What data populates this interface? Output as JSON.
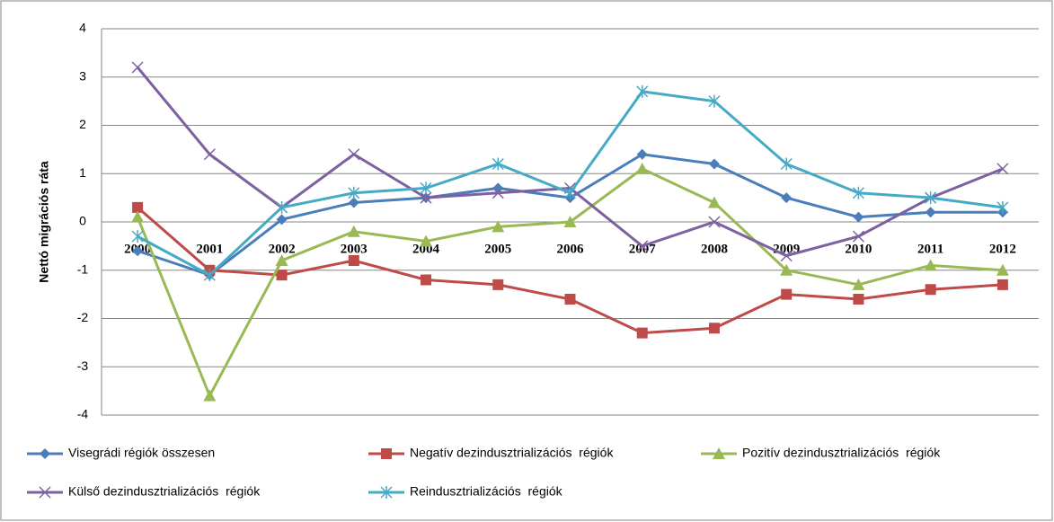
{
  "chart_data": {
    "type": "line",
    "y_label": "Nettó migrációs ráta",
    "categories": [
      "2000",
      "2001",
      "2002",
      "2003",
      "2004",
      "2005",
      "2006",
      "2007",
      "2008",
      "2009",
      "2010",
      "2011",
      "2012"
    ],
    "ylim": [
      -4,
      4
    ],
    "yticks": [
      -4,
      -3,
      -2,
      -1,
      0,
      1,
      2,
      3,
      4
    ],
    "grid": true,
    "legend": "bottom",
    "series": [
      {
        "name": "Visegrádi régiók összesen",
        "color": "#4a7ebb",
        "marker": "diamond",
        "values": [
          -0.6,
          -1.1,
          0.05,
          0.4,
          0.5,
          0.7,
          0.5,
          1.4,
          1.2,
          0.5,
          0.1,
          0.2,
          0.2
        ]
      },
      {
        "name": "Negatív dezindusztrializációs  régiók",
        "color": "#be4b48",
        "marker": "square",
        "values": [
          0.3,
          -1.0,
          -1.1,
          -0.8,
          -1.2,
          -1.3,
          -1.6,
          -2.3,
          -2.2,
          -1.5,
          -1.6,
          -1.4,
          -1.3
        ]
      },
      {
        "name": "Pozitív dezindusztrializációs  régiók",
        "color": "#98b954",
        "marker": "triangle",
        "values": [
          0.1,
          -3.6,
          -0.8,
          -0.2,
          -0.4,
          -0.1,
          0.0,
          1.1,
          0.4,
          -1.0,
          -1.3,
          -0.9,
          -1.0
        ]
      },
      {
        "name": "Külső dezindusztrializációs  régiók",
        "color": "#7d60a0",
        "marker": "x",
        "values": [
          3.2,
          1.4,
          0.3,
          1.4,
          0.5,
          0.6,
          0.7,
          -0.5,
          0.0,
          -0.7,
          -0.3,
          0.5,
          1.1
        ]
      },
      {
        "name": "Reindusztrializációs  régiók",
        "color": "#46aac5",
        "marker": "star",
        "values": [
          -0.3,
          -1.1,
          0.3,
          0.6,
          0.7,
          1.2,
          0.6,
          2.7,
          2.5,
          1.2,
          0.6,
          0.5,
          0.3
        ]
      }
    ]
  }
}
